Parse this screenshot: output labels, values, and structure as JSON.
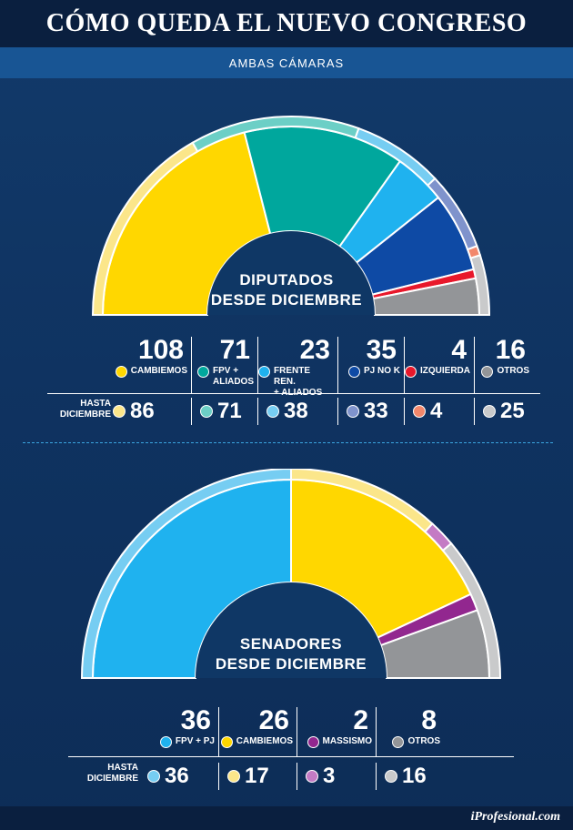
{
  "header": {
    "title": "CÓMO QUEDA EL NUEVO CONGRESO",
    "subtitle": "AMBAS CÁMARAS"
  },
  "chart_data": [
    {
      "type": "pie",
      "chamber": "DIPUTADOS DESDE DICIEMBRE",
      "label_lines": [
        "DIPUTADOS",
        "DESDE DICIEMBRE"
      ],
      "unit": "bancas",
      "series": [
        {
          "label_lines": [
            "CAMBIEMOS"
          ],
          "value": 108,
          "color": "#ffd700",
          "previous": 86,
          "previous_color": "#fbe68a"
        },
        {
          "label_lines": [
            "FPV +",
            "ALIADOS"
          ],
          "value": 71,
          "color": "#00a79d",
          "previous": 71,
          "previous_color": "#6ccfc6"
        },
        {
          "label_lines": [
            "FRENTE REN.",
            "+ ALIADOS"
          ],
          "value": 23,
          "color": "#1fb2ef",
          "previous": 38,
          "previous_color": "#76cdf2"
        },
        {
          "label_lines": [
            "PJ NO K"
          ],
          "value": 35,
          "color": "#0e4aa5",
          "previous": 33,
          "previous_color": "#7f93cc"
        },
        {
          "label_lines": [
            "IZQUIERDA"
          ],
          "value": 4,
          "color": "#e8182b",
          "previous": 4,
          "previous_color": "#f2876b"
        },
        {
          "label_lines": [
            "OTROS"
          ],
          "value": 16,
          "color": "#939598",
          "previous": 25,
          "previous_color": "#c9cacb"
        }
      ],
      "previous_label_lines": [
        "HASTA",
        "DICIEMBRE"
      ]
    },
    {
      "type": "pie",
      "chamber": "SENADORES DESDE DICIEMBRE",
      "label_lines": [
        "SENADORES",
        "DESDE DICIEMBRE"
      ],
      "unit": "bancas",
      "series": [
        {
          "label_lines": [
            "FPV + PJ"
          ],
          "value": 36,
          "color": "#1fb2ef",
          "previous": 36,
          "previous_color": "#76cdf2"
        },
        {
          "label_lines": [
            "CAMBIEMOS"
          ],
          "value": 26,
          "color": "#ffd700",
          "previous": 17,
          "previous_color": "#fbe68a"
        },
        {
          "label_lines": [
            "MASSISMO"
          ],
          "value": 2,
          "color": "#92278f",
          "previous": 3,
          "previous_color": "#c47bc4"
        },
        {
          "label_lines": [
            "OTROS"
          ],
          "value": 8,
          "color": "#939598",
          "previous": 16,
          "previous_color": "#c9cacb"
        }
      ],
      "previous_label_lines": [
        "HASTA",
        "DICIEMBRE"
      ]
    }
  ],
  "footer": {
    "credit": "iProfesional.com"
  }
}
